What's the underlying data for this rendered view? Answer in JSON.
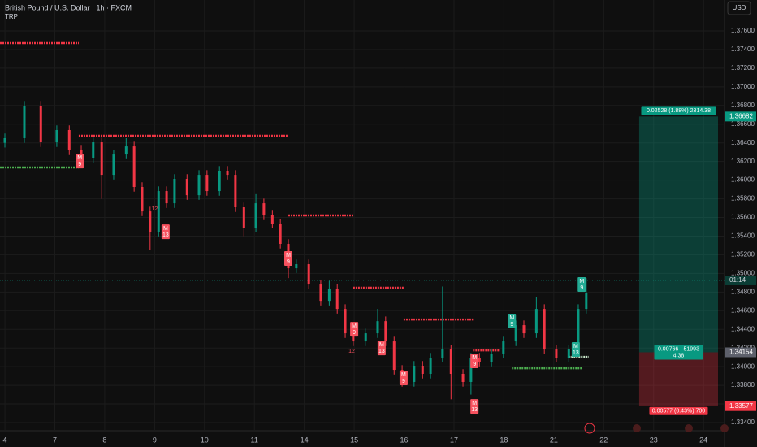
{
  "chart_data": {
    "type": "candlestick",
    "title": "British Pound / U.S. Dollar · 1h · FXCM",
    "subtitle": "TRP",
    "currency": "USD",
    "up_color": "#089981",
    "down_color": "#f23645",
    "grid": true,
    "ylim": [
      1.33313,
      1.37931
    ],
    "xlim": [
      -0.098,
      14.42
    ],
    "yticks": [
      {
        "value": 1.334,
        "label": "1.33400"
      },
      {
        "value": 1.336,
        "label": "1.33600"
      },
      {
        "value": 1.338,
        "label": "1.33800"
      },
      {
        "value": 1.34,
        "label": "1.34000"
      },
      {
        "value": 1.342,
        "label": "1.34200"
      },
      {
        "value": 1.344,
        "label": "1.34400"
      },
      {
        "value": 1.346,
        "label": "1.34600"
      },
      {
        "value": 1.348,
        "label": "1.34800"
      },
      {
        "value": 1.35,
        "label": "1.35000"
      },
      {
        "value": 1.352,
        "label": "1.35200"
      },
      {
        "value": 1.354,
        "label": "1.35400"
      },
      {
        "value": 1.356,
        "label": "1.35600"
      },
      {
        "value": 1.358,
        "label": "1.35800"
      },
      {
        "value": 1.36,
        "label": "1.36000"
      },
      {
        "value": 1.362,
        "label": "1.36200"
      },
      {
        "value": 1.364,
        "label": "1.36400"
      },
      {
        "value": 1.366,
        "label": "1.36600"
      },
      {
        "value": 1.368,
        "label": "1.36800"
      },
      {
        "value": 1.37,
        "label": "1.37000"
      },
      {
        "value": 1.372,
        "label": "1.37200"
      },
      {
        "value": 1.374,
        "label": "1.37400"
      },
      {
        "value": 1.376,
        "label": "1.37600"
      }
    ],
    "xticks": [
      {
        "value": 0,
        "label": "4"
      },
      {
        "value": 1,
        "label": "7"
      },
      {
        "value": 2,
        "label": "8"
      },
      {
        "value": 3,
        "label": "9"
      },
      {
        "value": 4,
        "label": "10"
      },
      {
        "value": 5,
        "label": "11"
      },
      {
        "value": 6,
        "label": "14"
      },
      {
        "value": 7,
        "label": "15"
      },
      {
        "value": 8,
        "label": "16"
      },
      {
        "value": 9,
        "label": "17"
      },
      {
        "value": 10,
        "label": "18"
      },
      {
        "value": 11,
        "label": "21"
      },
      {
        "value": 12,
        "label": "22"
      },
      {
        "value": 13,
        "label": "23"
      },
      {
        "value": 14,
        "label": "24"
      }
    ],
    "candles": {
      "x": [
        0,
        0.39,
        0.72,
        1.04,
        1.29,
        1.53,
        1.77,
        1.94,
        2.18,
        2.43,
        2.59,
        2.75,
        2.91,
        3.08,
        3.24,
        3.4,
        3.65,
        3.89,
        4.05,
        4.3,
        4.46,
        4.62,
        4.79,
        5.03,
        5.19,
        5.36,
        5.52,
        5.68,
        5.84,
        6.09,
        6.33,
        6.5,
        6.66,
        6.82,
        6.98,
        7.23,
        7.47,
        7.63,
        7.8,
        7.96,
        8.2,
        8.37,
        8.53,
        8.77,
        8.94,
        9.18,
        9.34,
        9.51,
        9.75,
        9.99,
        10.24,
        10.4,
        10.65,
        10.81,
        11.05,
        11.3,
        11.49,
        11.65
      ],
      "open": [
        1.364,
        1.3645,
        1.36798,
        1.36406,
        1.36537,
        1.36319,
        1.36232,
        1.36406,
        1.36057,
        1.36275,
        1.36362,
        1.35927,
        1.35665,
        1.35447,
        1.35883,
        1.35752,
        1.36014,
        1.35839,
        1.36057,
        1.35883,
        1.36101,
        1.36057,
        1.35709,
        1.35491,
        1.35752,
        1.35622,
        1.35534,
        1.35317,
        1.35055,
        1.35099,
        1.34881,
        1.34706,
        1.34838,
        1.34619,
        1.34358,
        1.34271,
        1.34358,
        1.34488,
        1.34271,
        1.33966,
        1.33836,
        1.3401,
        1.33923,
        1.34097,
        1.34184,
        1.33923,
        1.33836,
        1.34097,
        1.34053,
        1.34141,
        1.34271,
        1.34445,
        1.34358,
        1.34619,
        1.34184,
        1.34097,
        1.34184,
        1.34619
      ],
      "high": [
        1.365,
        1.36848,
        1.36848,
        1.36587,
        1.36587,
        1.36369,
        1.36456,
        1.36456,
        1.36325,
        1.3645,
        1.36412,
        1.35977,
        1.35715,
        1.35933,
        1.35933,
        1.36064,
        1.36064,
        1.36107,
        1.36107,
        1.36151,
        1.36151,
        1.36107,
        1.35759,
        1.3585,
        1.35802,
        1.35672,
        1.35584,
        1.35367,
        1.35149,
        1.35149,
        1.34931,
        1.3492,
        1.34888,
        1.34669,
        1.34408,
        1.34408,
        1.3462,
        1.34538,
        1.34321,
        1.34016,
        1.3406,
        1.3406,
        1.34147,
        1.3486,
        1.34234,
        1.33973,
        1.34147,
        1.34147,
        1.34191,
        1.34321,
        1.34495,
        1.34495,
        1.3475,
        1.34669,
        1.34234,
        1.34234,
        1.34669,
        1.3495
      ],
      "low": [
        1.3635,
        1.364,
        1.36356,
        1.36356,
        1.36269,
        1.36182,
        1.36182,
        1.358,
        1.36007,
        1.36225,
        1.35877,
        1.35615,
        1.3525,
        1.35397,
        1.35702,
        1.35702,
        1.35789,
        1.35789,
        1.35833,
        1.35833,
        1.36007,
        1.35659,
        1.354,
        1.35441,
        1.35572,
        1.35484,
        1.35267,
        1.3495,
        1.35005,
        1.34831,
        1.34656,
        1.34656,
        1.34569,
        1.34308,
        1.34221,
        1.34221,
        1.34308,
        1.34221,
        1.33916,
        1.33786,
        1.33786,
        1.33873,
        1.33873,
        1.34047,
        1.3365,
        1.33786,
        1.337,
        1.34003,
        1.34003,
        1.34091,
        1.34221,
        1.34308,
        1.34308,
        1.34134,
        1.34047,
        1.34047,
        1.34134,
        1.34569
      ],
      "close": [
        1.3645,
        1.36798,
        1.36406,
        1.36537,
        1.36319,
        1.36232,
        1.36406,
        1.36057,
        1.36275,
        1.36362,
        1.35927,
        1.35665,
        1.35447,
        1.35883,
        1.35752,
        1.36014,
        1.35839,
        1.36057,
        1.35883,
        1.36101,
        1.36057,
        1.35709,
        1.35491,
        1.35752,
        1.35622,
        1.35534,
        1.35317,
        1.35055,
        1.35099,
        1.34881,
        1.34706,
        1.34838,
        1.34619,
        1.34358,
        1.34271,
        1.34358,
        1.34488,
        1.34271,
        1.33966,
        1.33836,
        1.3401,
        1.33923,
        1.34097,
        1.34184,
        1.33923,
        1.33836,
        1.34097,
        1.34053,
        1.34141,
        1.34271,
        1.34445,
        1.34358,
        1.34619,
        1.34184,
        1.34097,
        1.34184,
        1.34619,
        1.34794
      ]
    },
    "levels": [
      {
        "price": 1.37469,
        "x": [
          -0.098,
          1.48
        ],
        "color": "#f23645"
      },
      {
        "price": 1.36476,
        "x": [
          1.48,
          5.68
        ],
        "color": "#f23645"
      },
      {
        "price": 1.35622,
        "x": [
          5.68,
          6.98
        ],
        "color": "#f23645"
      },
      {
        "price": 1.34846,
        "x": [
          6.98,
          7.99
        ],
        "color": "#f23645"
      },
      {
        "price": 1.34506,
        "x": [
          7.99,
          9.38
        ],
        "color": "#f23645"
      },
      {
        "price": 1.34175,
        "x": [
          9.38,
          9.91
        ],
        "color": "#f23645"
      },
      {
        "price": 1.36136,
        "x": [
          -0.098,
          1.48
        ],
        "color": "#4caf50"
      },
      {
        "price": 1.33983,
        "x": [
          10.16,
          11.56
        ],
        "color": "#4caf50"
      },
      {
        "price": 1.34105,
        "x": [
          11.3,
          11.7
        ],
        "color": "#c8e6c9"
      }
    ],
    "markers": [
      {
        "x": 1.5,
        "price": 1.36205,
        "top": "M",
        "bottom": "9",
        "color": "#f7525f"
      },
      {
        "x": 3.22,
        "price": 1.35447,
        "top": "M",
        "bottom": "13",
        "color": "#f7525f"
      },
      {
        "x": 5.68,
        "price": 1.3516,
        "top": "M",
        "bottom": "9",
        "color": "#f7525f"
      },
      {
        "x": 7.0,
        "price": 1.34401,
        "top": "M",
        "bottom": "9",
        "color": "#f7525f"
      },
      {
        "x": 7.55,
        "price": 1.34201,
        "top": "M",
        "bottom": "13",
        "color": "#f7525f"
      },
      {
        "x": 7.99,
        "price": 1.33879,
        "top": "M",
        "bottom": "9",
        "color": "#f7525f"
      },
      {
        "x": 9.41,
        "price": 1.34062,
        "top": "M",
        "bottom": "9",
        "color": "#f7525f"
      },
      {
        "x": 9.41,
        "price": 1.33573,
        "top": "M",
        "bottom": "13",
        "color": "#f7525f"
      },
      {
        "x": 10.16,
        "price": 1.34489,
        "top": "M",
        "bottom": "9",
        "color": "#22ab94"
      },
      {
        "x": 11.56,
        "price": 1.34881,
        "top": "M",
        "bottom": "9",
        "color": "#22ab94"
      },
      {
        "x": 11.44,
        "price": 1.34184,
        "top": "M",
        "bottom": "13",
        "color": "#22ab94"
      }
    ],
    "counts": [
      {
        "x": 3.0,
        "price": 1.35691,
        "label": "12"
      },
      {
        "x": 6.95,
        "price": 1.34166,
        "label": "12"
      }
    ],
    "last_price": 1.34925,
    "countdown": "01:14",
    "position": {
      "x": [
        12.71,
        14.29
      ],
      "target": 1.36682,
      "entry": 1.34154,
      "stop": 1.33577,
      "target_text": "0.02528 (1.88%) 2314.38",
      "entry_text": "0.00766 - 51993",
      "entry_text_2": "4.38",
      "stop_text": "0.00577 (0.43%) 700"
    }
  }
}
